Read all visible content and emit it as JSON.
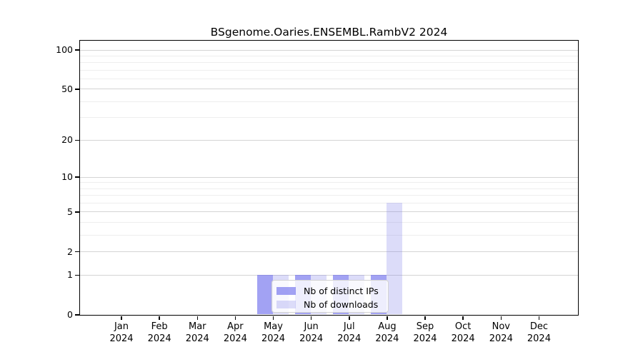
{
  "title": "BSgenome.Oaries.ENSEMBL.RambV2 2024",
  "chart_data": {
    "type": "bar",
    "title": "BSgenome.Oaries.ENSEMBL.RambV2 2024",
    "categories": [
      "Jan",
      "Feb",
      "Mar",
      "Apr",
      "May",
      "Jun",
      "Jul",
      "Aug",
      "Sep",
      "Oct",
      "Nov",
      "Dec"
    ],
    "x_tick_year": "2024",
    "series": [
      {
        "name": "Nb of distinct IPs",
        "fill": "rgba(100,100,235,0.6)",
        "color_hex": "#a2a2f3",
        "values": [
          0,
          0,
          0,
          0,
          1,
          1,
          1,
          1,
          0,
          0,
          0,
          0
        ]
      },
      {
        "name": "Nb of downloads",
        "fill": "rgba(115,115,230,0.25)",
        "color_hex": "#dcdcf8",
        "values": [
          0,
          0,
          0,
          0,
          1,
          1,
          1,
          6,
          0,
          0,
          0,
          0
        ]
      }
    ],
    "y_ticks": [
      0,
      1,
      2,
      5,
      10,
      20,
      50,
      100
    ],
    "y_minor_gridlines": [
      3,
      4,
      6,
      7,
      8,
      9,
      30,
      40,
      60,
      70,
      80,
      90
    ],
    "y_scale": "log(1+x)",
    "ylim": [
      0,
      110
    ],
    "grid": true,
    "legend": {
      "position": "lower-center"
    }
  },
  "colors": {
    "background": "#ffffff",
    "axis": "#000000",
    "major_gridline": "#d4d4d4",
    "minor_gridline": "#eeeeee",
    "legend_border": "#d2d2d2",
    "legend_background": "rgba(255,255,255,0.82)",
    "text": "#000000"
  }
}
